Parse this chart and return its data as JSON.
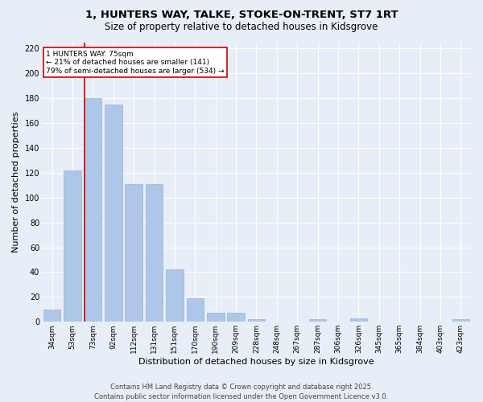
{
  "title_line1": "1, HUNTERS WAY, TALKE, STOKE-ON-TRENT, ST7 1RT",
  "title_line2": "Size of property relative to detached houses in Kidsgrove",
  "xlabel": "Distribution of detached houses by size in Kidsgrove",
  "ylabel": "Number of detached properties",
  "categories": [
    "34sqm",
    "53sqm",
    "73sqm",
    "92sqm",
    "112sqm",
    "131sqm",
    "151sqm",
    "170sqm",
    "190sqm",
    "209sqm",
    "228sqm",
    "248sqm",
    "267sqm",
    "287sqm",
    "306sqm",
    "326sqm",
    "345sqm",
    "365sqm",
    "384sqm",
    "403sqm",
    "423sqm"
  ],
  "values": [
    10,
    122,
    180,
    175,
    111,
    111,
    42,
    19,
    7,
    7,
    2,
    0,
    0,
    2,
    0,
    3,
    0,
    0,
    0,
    0,
    2
  ],
  "bar_color": "#aec6e8",
  "bar_edge_color": "#8eaac8",
  "annotation_text": "1 HUNTERS WAY: 75sqm\n← 21% of detached houses are smaller (141)\n79% of semi-detached houses are larger (534) →",
  "annotation_box_color": "#ffffff",
  "annotation_box_edge_color": "#cc0000",
  "ylim": [
    0,
    225
  ],
  "yticks": [
    0,
    20,
    40,
    60,
    80,
    100,
    120,
    140,
    160,
    180,
    200,
    220
  ],
  "footer_line1": "Contains HM Land Registry data © Crown copyright and database right 2025.",
  "footer_line2": "Contains public sector information licensed under the Open Government Licence v3.0.",
  "background_color": "#e8eef8",
  "plot_bg_color": "#e8eef8",
  "grid_color": "#ffffff",
  "red_line_color": "#cc0000",
  "title_fontsize": 9.5,
  "subtitle_fontsize": 8.5,
  "tick_fontsize": 6.5,
  "axis_label_fontsize": 8,
  "footer_fontsize": 6,
  "annotation_fontsize": 6.5
}
